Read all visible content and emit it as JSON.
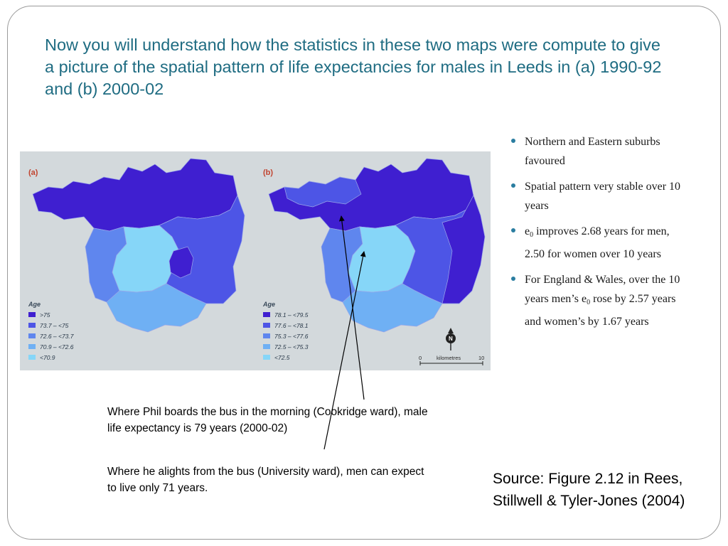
{
  "slide": {
    "title": "Now you will understand how the statistics in these two maps were compute to give a picture of the spatial pattern of life expectancies for males in Leeds in  (a) 1990-92 and (b) 2000-02"
  },
  "bullets": [
    {
      "text": "Northern and Eastern suburbs favoured"
    },
    {
      "text": "Spatial pattern very stable over 10 years"
    },
    {
      "pre": "e",
      "sub": "0",
      "post": " improves 2.68 years for men, 2.50 for women over 10 years"
    },
    {
      "pre": "For England & Wales, over the 10 years men’s e",
      "sub": "0",
      "post": " rose by 2.57 years and women’s by 1.67 years"
    }
  ],
  "figure": {
    "panels": [
      {
        "label": "(a)",
        "legend_title": "Age",
        "legend": [
          {
            "label": ">75",
            "color": "#3f1fd0"
          },
          {
            "label": "73.7 – <75",
            "color": "#4d55e6"
          },
          {
            "label": "72.6 – <73.7",
            "color": "#5f86ee"
          },
          {
            "label": "70.9 – <72.6",
            "color": "#6fb0f4"
          },
          {
            "label": "<70.9",
            "color": "#86d6f8"
          }
        ]
      },
      {
        "label": "(b)",
        "legend_title": "Age",
        "legend": [
          {
            "label": "78.1 – <79.5",
            "color": "#3f1fd0"
          },
          {
            "label": "77.6 – <78.1",
            "color": "#4d55e6"
          },
          {
            "label": "75.3 – <77.6",
            "color": "#5f86ee"
          },
          {
            "label": "72.5 – <75.3",
            "color": "#6fb0f4"
          },
          {
            "label": "<72.5",
            "color": "#86d6f8"
          }
        ]
      }
    ],
    "north_label": "N",
    "scale": {
      "start": "0",
      "unit": "kilometres",
      "end": "10"
    }
  },
  "annotations": {
    "boarding": "Where Phil boards the bus in the morning (Cookridge ward), male life expectancy is 79 years (2000-02)",
    "alighting": "Where he alights from the bus (University ward), men can expect to live only 71 years."
  },
  "source": "Source: Figure 2.12 in Rees, Stillwell & Tyler-Jones (2004)"
}
